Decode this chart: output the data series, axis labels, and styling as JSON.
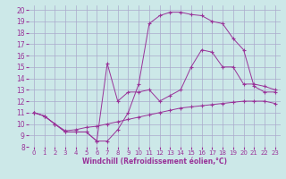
{
  "xlabel": "Windchill (Refroidissement éolien,°C)",
  "bg_color": "#cce8e8",
  "grid_color": "#aaaacc",
  "line_color": "#993399",
  "xlim": [
    -0.5,
    23.5
  ],
  "ylim": [
    8,
    20.4
  ],
  "xticks": [
    0,
    1,
    2,
    3,
    4,
    5,
    6,
    7,
    8,
    9,
    10,
    11,
    12,
    13,
    14,
    15,
    16,
    17,
    18,
    19,
    20,
    21,
    22,
    23
  ],
  "yticks": [
    8,
    9,
    10,
    11,
    12,
    13,
    14,
    15,
    16,
    17,
    18,
    19,
    20
  ],
  "series": [
    {
      "x": [
        0,
        1,
        2,
        3,
        4,
        5,
        6,
        7,
        8,
        9,
        10,
        11,
        12,
        13,
        14,
        15,
        16,
        17,
        18,
        19,
        20,
        21,
        22,
        23
      ],
      "y": [
        11.0,
        10.7,
        10.0,
        9.3,
        9.3,
        9.3,
        8.5,
        8.5,
        9.5,
        11.0,
        13.5,
        18.8,
        19.5,
        19.8,
        19.8,
        19.6,
        19.5,
        19.0,
        18.8,
        17.5,
        16.5,
        13.3,
        12.8,
        12.8
      ]
    },
    {
      "x": [
        0,
        1,
        2,
        3,
        4,
        5,
        6,
        7,
        8,
        9,
        10,
        11,
        12,
        13,
        14,
        15,
        16,
        17,
        18,
        19,
        20,
        21,
        22,
        23
      ],
      "y": [
        11.0,
        10.7,
        10.0,
        9.3,
        9.3,
        9.3,
        8.5,
        15.3,
        12.0,
        12.8,
        12.8,
        13.0,
        12.0,
        12.5,
        13.0,
        15.0,
        16.5,
        16.3,
        15.0,
        15.0,
        13.5,
        13.5,
        13.3,
        13.0
      ]
    },
    {
      "x": [
        0,
        1,
        2,
        3,
        4,
        5,
        6,
        7,
        8,
        9,
        10,
        11,
        12,
        13,
        14,
        15,
        16,
        17,
        18,
        19,
        20,
        21,
        22,
        23
      ],
      "y": [
        11.0,
        10.7,
        10.0,
        9.4,
        9.5,
        9.7,
        9.8,
        10.0,
        10.2,
        10.4,
        10.6,
        10.8,
        11.0,
        11.2,
        11.4,
        11.5,
        11.6,
        11.7,
        11.8,
        11.9,
        12.0,
        12.0,
        12.0,
        11.8
      ]
    }
  ]
}
